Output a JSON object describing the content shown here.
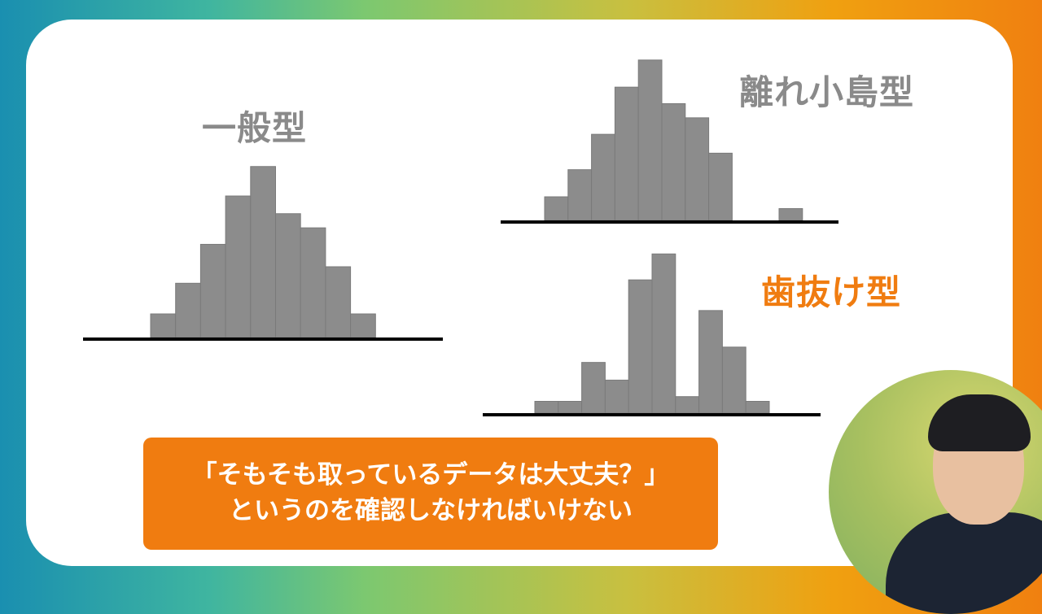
{
  "colors": {
    "bar": "#8c8c8c",
    "bar_edge": "#7a7a7a",
    "axis": "#000000",
    "accent": "#f07c10",
    "title_gray": "#8a8a8a"
  },
  "chart_data": [
    {
      "type": "bar",
      "title": "一般型",
      "values": [
        2,
        4.6,
        7.9,
        12,
        14.5,
        10.5,
        9.3,
        6,
        2
      ]
    },
    {
      "type": "bar",
      "title": "離れ小島型",
      "values": [
        2,
        4.3,
        7.3,
        11.3,
        13.6,
        9.9,
        8.7,
        5.7,
        0,
        0,
        1
      ]
    },
    {
      "type": "bar",
      "title": "歯抜け型",
      "values": [
        1,
        1,
        4.3,
        2.8,
        11.3,
        13.5,
        1.4,
        8.7,
        5.6,
        1
      ]
    }
  ],
  "caption": {
    "line1": "「そもそも取っているデータは大丈夫？」",
    "line2": "というのを確認しなければいけない"
  }
}
